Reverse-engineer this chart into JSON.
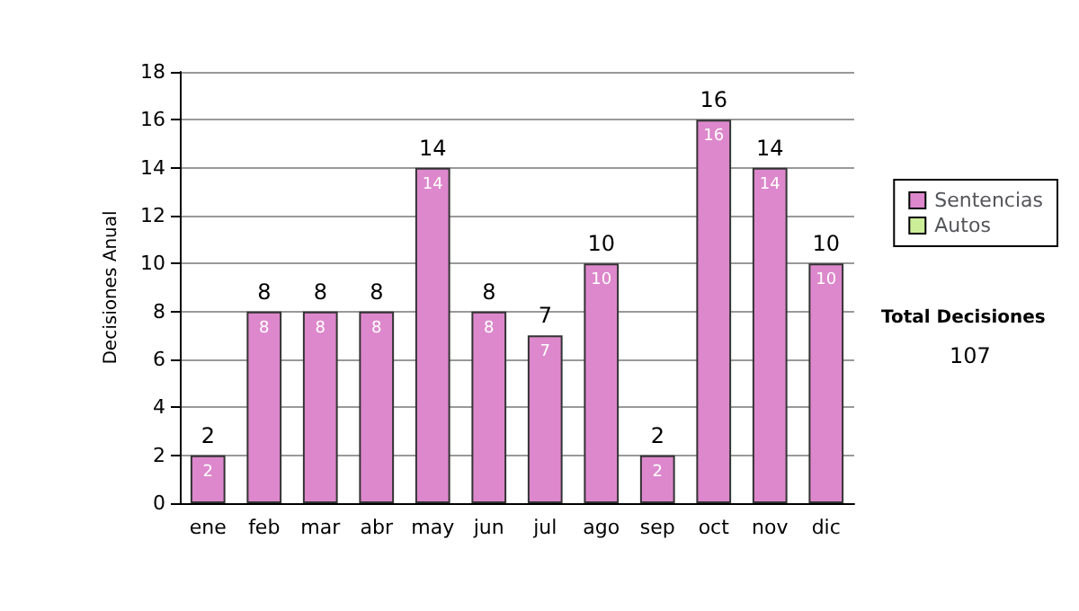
{
  "chart_data": {
    "type": "bar",
    "stacked": true,
    "ylabel": "Decisiones Anual",
    "categories": [
      "ene",
      "feb",
      "mar",
      "abr",
      "may",
      "jun",
      "jul",
      "ago",
      "sep",
      "oct",
      "nov",
      "dic"
    ],
    "series": [
      {
        "name": "Sentencias",
        "color": "#dd88cc",
        "values": [
          2,
          8,
          8,
          8,
          14,
          8,
          7,
          10,
          2,
          16,
          14,
          10
        ],
        "value_labels": [
          "2",
          "8",
          "8",
          "8",
          "14",
          "8",
          "7",
          "10",
          "2",
          "16",
          "14",
          "10"
        ]
      },
      {
        "name": "Autos",
        "color": "#ccee99",
        "values": [
          0,
          0,
          0,
          0,
          0,
          0,
          0,
          0,
          0,
          0,
          0,
          0
        ]
      }
    ],
    "totals": [
      "2",
      "8",
      "8",
      "8",
      "14",
      "8",
      "7",
      "10",
      "2",
      "16",
      "14",
      "10"
    ],
    "ylim": [
      0,
      18
    ],
    "yticks": [
      0,
      2,
      4,
      6,
      8,
      10,
      12,
      14,
      16,
      18
    ],
    "grid": "y",
    "legend": "right",
    "annotations": [
      "Total Decisiones",
      "107"
    ]
  }
}
